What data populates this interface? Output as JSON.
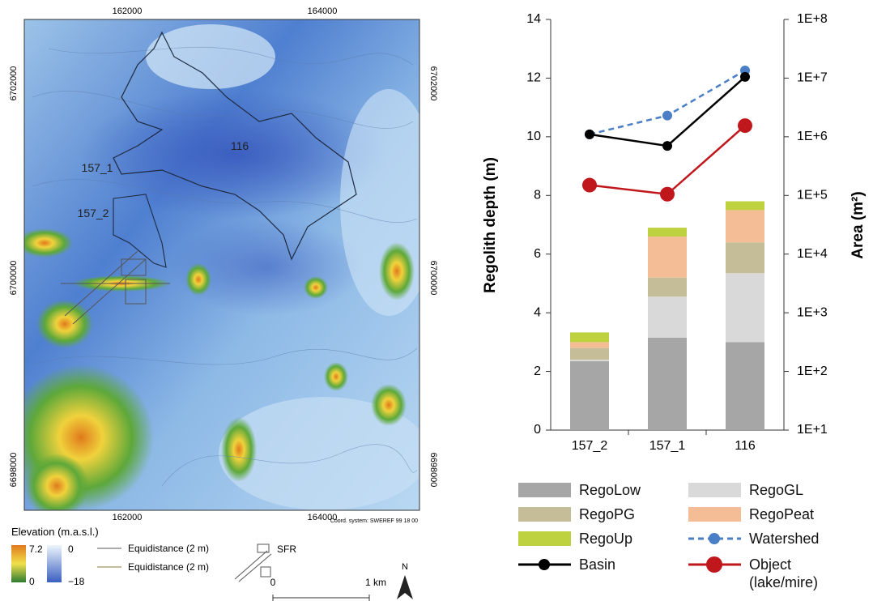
{
  "chart_data": {
    "type": "bar",
    "categories": [
      "157_2",
      "157_1",
      "116"
    ],
    "ylabel": "Regolith depth (m)",
    "y2label": "Area (m²)",
    "ylim": [
      0,
      14
    ],
    "yticks": [
      0,
      2,
      4,
      6,
      8,
      10,
      12,
      14
    ],
    "y2lim": [
      10,
      100000000
    ],
    "y2scale": "log",
    "y2ticks": [
      {
        "value": 10,
        "label": "1E+1"
      },
      {
        "value": 100,
        "label": "1E+2"
      },
      {
        "value": 1000,
        "label": "1E+3"
      },
      {
        "value": 10000,
        "label": "1E+4"
      },
      {
        "value": 100000,
        "label": "1E+5"
      },
      {
        "value": 1000000,
        "label": "1E+6"
      },
      {
        "value": 10000000,
        "label": "1E+7"
      },
      {
        "value": 100000000,
        "label": "1E+8"
      }
    ],
    "stacked": true,
    "grid": false,
    "series": [
      {
        "name": "RegoLow",
        "color": "#a6a6a6",
        "values": [
          2.35,
          3.15,
          3.0
        ]
      },
      {
        "name": "RegoGL",
        "color": "#d9d9d9",
        "values": [
          0.05,
          1.4,
          2.35
        ]
      },
      {
        "name": "RegoPG",
        "color": "#c4bd97",
        "values": [
          0.4,
          0.65,
          1.05
        ]
      },
      {
        "name": "RegoPeat",
        "color": "#f5bd95",
        "values": [
          0.2,
          1.4,
          1.1
        ]
      },
      {
        "name": "RegoUp",
        "color": "#bed13e",
        "values": [
          0.33,
          0.3,
          0.3
        ]
      },
      {
        "name": "Watershed",
        "color": "#4a7ec6",
        "type": "line",
        "axis": "y2",
        "linestyle": "dashed",
        "marker_size": 6,
        "values": [
          1100000,
          2300000,
          13500000
        ]
      },
      {
        "name": "Basin",
        "color": "#000000",
        "type": "line",
        "axis": "y2",
        "linestyle": "solid",
        "marker_size": 6,
        "values": [
          1100000,
          700000,
          10500000
        ]
      },
      {
        "name": "Object (lake/mire)",
        "color": "#c0171c",
        "type": "line",
        "axis": "y2",
        "linestyle": "solid",
        "marker_size": 9,
        "values": [
          150000,
          105000,
          1550000
        ]
      }
    ]
  },
  "map": {
    "x_labels": [
      "162000",
      "164000"
    ],
    "y_labels": [
      "6702000",
      "6700000",
      "6698000"
    ],
    "areas": [
      "116",
      "157_1",
      "157_2"
    ],
    "coord_system": "Coord. system: SWEREF 99 18 00",
    "legend": {
      "title": "Elevation (m.a.s.l.)",
      "land_max": "7.2",
      "land_min": "0",
      "sea_max": "0",
      "sea_min": "−18",
      "contours": [
        "Equidistance (2 m)",
        "Equidistance (2 m)"
      ],
      "facility": "SFR"
    },
    "scale": [
      "0",
      "1 km"
    ],
    "north": "N"
  }
}
